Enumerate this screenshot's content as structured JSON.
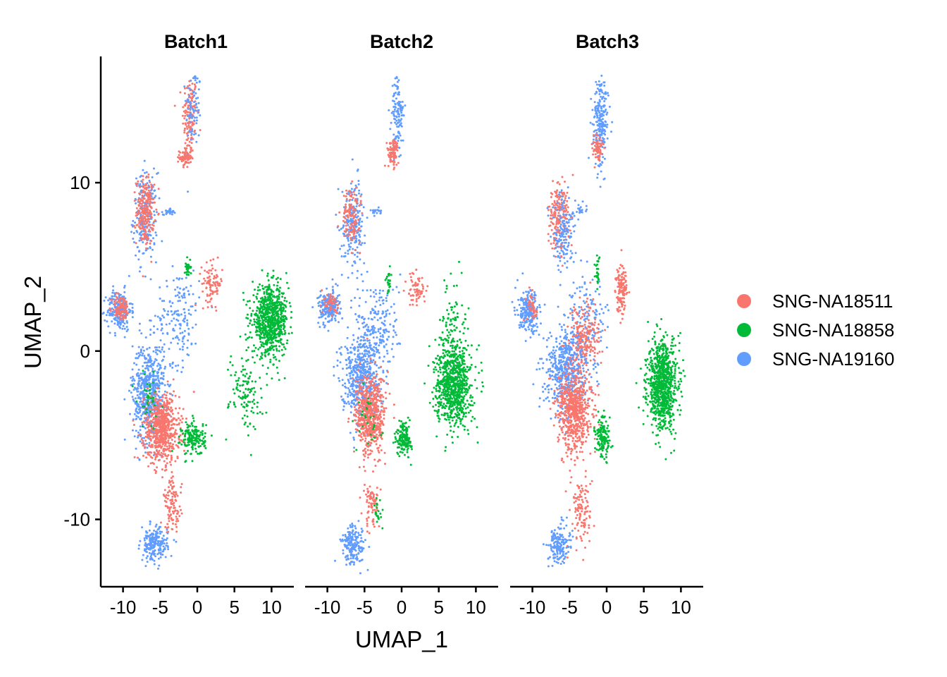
{
  "chart_data": {
    "type": "scatter",
    "xlabel": "UMAP_1",
    "ylabel": "UMAP_2",
    "xlim": [
      -13,
      13
    ],
    "ylim": [
      -14,
      17.5
    ],
    "x_ticks": [
      -10,
      -5,
      0,
      5,
      10
    ],
    "x_tick_labels": [
      "-10",
      "-5",
      "0",
      "5",
      "10"
    ],
    "y_ticks": [
      -10,
      0,
      10
    ],
    "y_tick_labels": [
      "-10",
      "0",
      "10"
    ],
    "grid": false,
    "legend_position": "right",
    "series": [
      {
        "name": "SNG-NA18511",
        "color": "#F8766D"
      },
      {
        "name": "SNG-NA18858",
        "color": "#00BA38"
      },
      {
        "name": "SNG-NA19160",
        "color": "#619CFF"
      }
    ],
    "panels": [
      {
        "title": "Batch1",
        "clusters": [
          {
            "series": 0,
            "cx": -1.0,
            "cy": 14.0,
            "sx": 0.5,
            "sy": 1.2,
            "n": 140
          },
          {
            "series": 2,
            "cx": -0.5,
            "cy": 14.5,
            "sx": 0.5,
            "sy": 1.2,
            "n": 80
          },
          {
            "series": 0,
            "cx": -1.6,
            "cy": 11.5,
            "sx": 0.4,
            "sy": 0.3,
            "n": 80
          },
          {
            "series": 2,
            "cx": -7.0,
            "cy": 8.0,
            "sx": 0.8,
            "sy": 1.3,
            "n": 220
          },
          {
            "series": 0,
            "cx": -7.0,
            "cy": 8.3,
            "sx": 0.6,
            "sy": 1.0,
            "n": 220
          },
          {
            "series": 2,
            "cx": -3.8,
            "cy": 8.3,
            "sx": 0.4,
            "sy": 0.1,
            "n": 30
          },
          {
            "series": 2,
            "cx": -10.5,
            "cy": 2.4,
            "sx": 0.8,
            "sy": 0.6,
            "n": 220
          },
          {
            "series": 0,
            "cx": -10.3,
            "cy": 2.6,
            "sx": 0.6,
            "sy": 0.4,
            "n": 100
          },
          {
            "series": 2,
            "cx": -2.5,
            "cy": 2.0,
            "sx": 1.4,
            "sy": 1.4,
            "n": 160
          },
          {
            "series": 0,
            "cx": 2.0,
            "cy": 4.0,
            "sx": 0.7,
            "sy": 0.6,
            "n": 90
          },
          {
            "series": 1,
            "cx": -1.3,
            "cy": 5.0,
            "sx": 0.2,
            "sy": 0.3,
            "n": 30
          },
          {
            "series": 2,
            "cx": -6.5,
            "cy": -2.5,
            "sx": 1.1,
            "sy": 1.5,
            "n": 600
          },
          {
            "series": 0,
            "cx": -4.8,
            "cy": -4.6,
            "sx": 1.2,
            "sy": 1.0,
            "n": 650
          },
          {
            "series": 1,
            "cx": -6.5,
            "cy": -2.8,
            "sx": 0.8,
            "sy": 0.9,
            "n": 40
          },
          {
            "series": 1,
            "cx": 9.8,
            "cy": 1.8,
            "sx": 1.2,
            "sy": 1.0,
            "n": 750
          },
          {
            "series": 1,
            "cx": 6.5,
            "cy": -2.3,
            "sx": 1.1,
            "sy": 1.2,
            "n": 120
          },
          {
            "series": 1,
            "cx": -0.5,
            "cy": -5.2,
            "sx": 0.8,
            "sy": 0.5,
            "n": 170
          },
          {
            "series": 0,
            "cx": -3.3,
            "cy": -9.2,
            "sx": 0.6,
            "sy": 0.8,
            "n": 110
          },
          {
            "series": 2,
            "cx": -5.8,
            "cy": -11.5,
            "sx": 0.9,
            "sy": 0.5,
            "n": 200
          }
        ]
      },
      {
        "title": "Batch2",
        "clusters": [
          {
            "series": 2,
            "cx": -0.5,
            "cy": 14.0,
            "sx": 0.4,
            "sy": 1.2,
            "n": 120
          },
          {
            "series": 0,
            "cx": -1.2,
            "cy": 11.8,
            "sx": 0.4,
            "sy": 0.4,
            "n": 90
          },
          {
            "series": 2,
            "cx": -6.5,
            "cy": 7.7,
            "sx": 0.8,
            "sy": 1.2,
            "n": 200
          },
          {
            "series": 0,
            "cx": -6.8,
            "cy": 8.0,
            "sx": 0.6,
            "sy": 0.8,
            "n": 120
          },
          {
            "series": 2,
            "cx": -3.5,
            "cy": 8.3,
            "sx": 0.4,
            "sy": 0.1,
            "n": 20
          },
          {
            "series": 2,
            "cx": -9.8,
            "cy": 2.6,
            "sx": 0.7,
            "sy": 0.5,
            "n": 200
          },
          {
            "series": 0,
            "cx": -9.5,
            "cy": 2.8,
            "sx": 0.5,
            "sy": 0.4,
            "n": 50
          },
          {
            "series": 2,
            "cx": -3.2,
            "cy": 1.5,
            "sx": 1.5,
            "sy": 1.4,
            "n": 200
          },
          {
            "series": 0,
            "cx": 2.0,
            "cy": 3.7,
            "sx": 0.6,
            "sy": 0.5,
            "n": 70
          },
          {
            "series": 1,
            "cx": -1.7,
            "cy": 4.2,
            "sx": 0.2,
            "sy": 0.4,
            "n": 25
          },
          {
            "series": 2,
            "cx": -5.5,
            "cy": -1.5,
            "sx": 1.3,
            "sy": 1.2,
            "n": 520
          },
          {
            "series": 0,
            "cx": -4.2,
            "cy": -3.8,
            "sx": 1.0,
            "sy": 1.2,
            "n": 600
          },
          {
            "series": 1,
            "cx": -4.5,
            "cy": -4.0,
            "sx": 0.8,
            "sy": 1.0,
            "n": 30
          },
          {
            "series": 1,
            "cx": 7.0,
            "cy": -2.0,
            "sx": 1.2,
            "sy": 1.2,
            "n": 780
          },
          {
            "series": 1,
            "cx": 7.0,
            "cy": 1.5,
            "sx": 0.8,
            "sy": 1.2,
            "n": 90
          },
          {
            "series": 1,
            "cx": 0.3,
            "cy": -5.2,
            "sx": 0.5,
            "sy": 0.5,
            "n": 160
          },
          {
            "series": 0,
            "cx": -4.0,
            "cy": -9.0,
            "sx": 0.6,
            "sy": 0.8,
            "n": 80
          },
          {
            "series": 1,
            "cx": -3.2,
            "cy": -9.6,
            "sx": 0.3,
            "sy": 0.4,
            "n": 20
          },
          {
            "series": 2,
            "cx": -6.5,
            "cy": -11.5,
            "sx": 0.8,
            "sy": 0.6,
            "n": 180
          }
        ]
      },
      {
        "title": "Batch3",
        "clusters": [
          {
            "series": 2,
            "cx": -0.8,
            "cy": 13.5,
            "sx": 0.5,
            "sy": 1.3,
            "n": 220
          },
          {
            "series": 0,
            "cx": -1.2,
            "cy": 12.0,
            "sx": 0.4,
            "sy": 0.5,
            "n": 60
          },
          {
            "series": 0,
            "cx": -6.5,
            "cy": 8.0,
            "sx": 0.7,
            "sy": 1.0,
            "n": 200
          },
          {
            "series": 2,
            "cx": -5.8,
            "cy": 7.0,
            "sx": 0.8,
            "sy": 1.1,
            "n": 140
          },
          {
            "series": 2,
            "cx": -3.5,
            "cy": 8.3,
            "sx": 0.5,
            "sy": 0.2,
            "n": 20
          },
          {
            "series": 2,
            "cx": -10.5,
            "cy": 2.3,
            "sx": 0.7,
            "sy": 0.6,
            "n": 220
          },
          {
            "series": 0,
            "cx": -10.0,
            "cy": 2.6,
            "sx": 0.4,
            "sy": 0.4,
            "n": 40
          },
          {
            "series": 2,
            "cx": -2.8,
            "cy": 1.5,
            "sx": 1.5,
            "sy": 1.4,
            "n": 160
          },
          {
            "series": 0,
            "cx": 2.0,
            "cy": 3.8,
            "sx": 0.4,
            "sy": 0.7,
            "n": 140
          },
          {
            "series": 0,
            "cx": -3.0,
            "cy": 0.8,
            "sx": 1.0,
            "sy": 1.0,
            "n": 200
          },
          {
            "series": 1,
            "cx": -1.2,
            "cy": 4.8,
            "sx": 0.2,
            "sy": 0.4,
            "n": 25
          },
          {
            "series": 2,
            "cx": -5.5,
            "cy": -1.2,
            "sx": 1.4,
            "sy": 1.2,
            "n": 500
          },
          {
            "series": 0,
            "cx": -4.3,
            "cy": -3.5,
            "sx": 1.1,
            "sy": 1.3,
            "n": 650
          },
          {
            "series": 1,
            "cx": 7.5,
            "cy": -2.0,
            "sx": 1.0,
            "sy": 1.3,
            "n": 850
          },
          {
            "series": 1,
            "cx": -0.5,
            "cy": -5.2,
            "sx": 0.5,
            "sy": 0.6,
            "n": 140
          },
          {
            "series": 0,
            "cx": -3.5,
            "cy": -9.5,
            "sx": 0.7,
            "sy": 1.0,
            "n": 110
          },
          {
            "series": 2,
            "cx": -6.5,
            "cy": -11.5,
            "sx": 0.7,
            "sy": 0.6,
            "n": 170
          }
        ]
      }
    ]
  }
}
